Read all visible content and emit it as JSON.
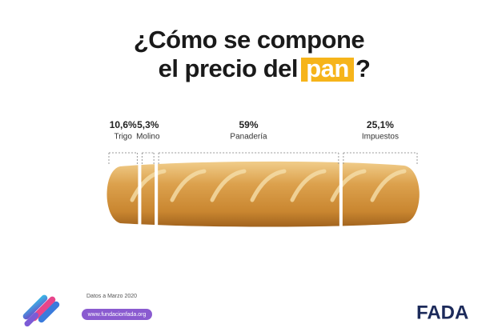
{
  "chart_data": {
    "type": "stacked-bar",
    "title_parts": [
      "¿Cómo se compone",
      "el precio del",
      "pan",
      "?"
    ],
    "categories": [
      "Trigo",
      "Molino",
      "Panadería",
      "Impuestos"
    ],
    "values": [
      10.6,
      5.3,
      59,
      25.1
    ],
    "value_labels": [
      "10,6%",
      "5,3%",
      "59%",
      "25,1%"
    ],
    "xlim": [
      0,
      100
    ],
    "color": "#d9a04a"
  },
  "footer": {
    "date_note": "Datos a Marzo 2020",
    "url": "www.fundacionfada.org",
    "brand": "FADA"
  }
}
